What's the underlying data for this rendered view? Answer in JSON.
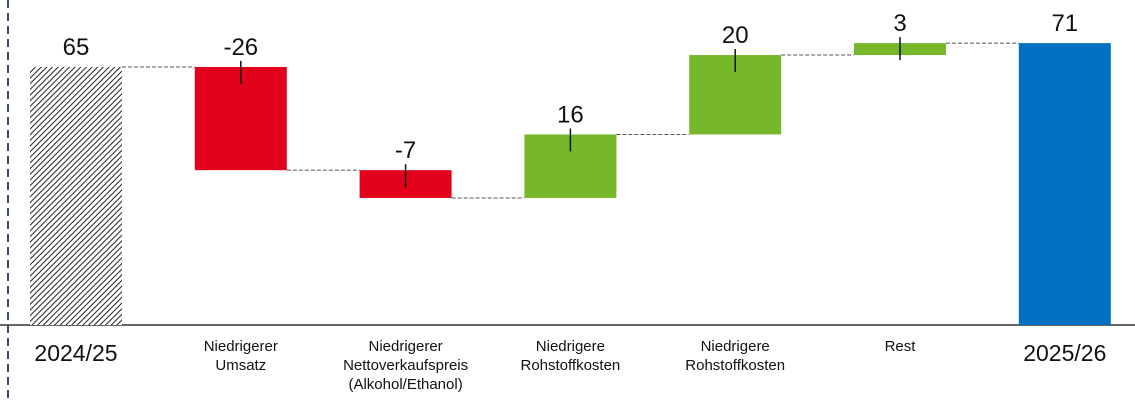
{
  "chart_data": {
    "type": "waterfall",
    "categories": [
      "2024/25",
      "Niedrigerer\nUmsatz",
      "Niedrigerer\nNettoverkaufspreis\n(Alkohol/Ethanol)",
      "Niedrigere\nRohstoffkosten",
      "Niedrigere\nRohstoffkosten",
      "Rest",
      "2025/26"
    ],
    "values": [
      65,
      -26,
      -7,
      16,
      20,
      3,
      71
    ],
    "ylim": [
      0,
      80
    ],
    "increase_color": "#76b82a",
    "decrease_color": "#e2001a",
    "total_color": "#0070c0"
  }
}
